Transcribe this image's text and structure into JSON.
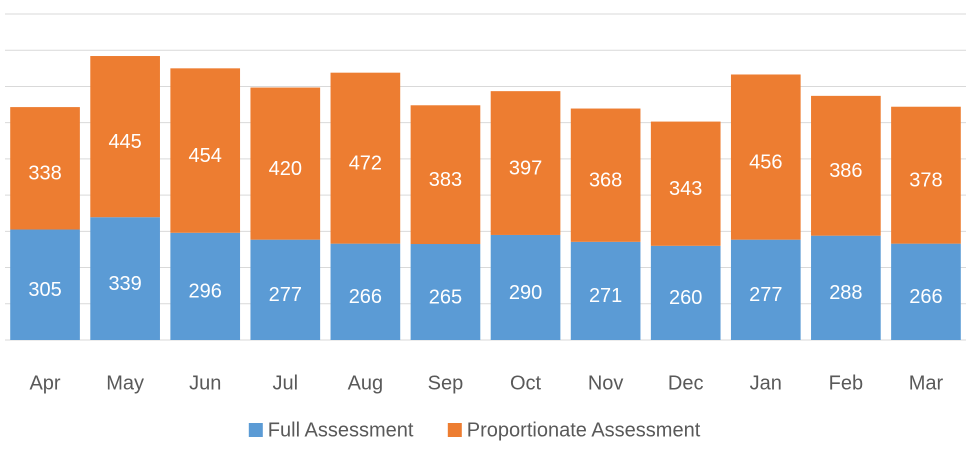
{
  "chart_data": {
    "type": "stacked_bar",
    "categories": [
      "Apr",
      "May",
      "Jun",
      "Jul",
      "Aug",
      "Sep",
      "Oct",
      "Nov",
      "Dec",
      "Jan",
      "Feb",
      "Mar"
    ],
    "series": [
      {
        "name": "Full Assessment",
        "color": "#5b9bd5",
        "values": [
          305,
          339,
          296,
          277,
          266,
          265,
          290,
          271,
          260,
          277,
          288,
          266
        ]
      },
      {
        "name": "Proportionate Assessment",
        "color": "#ed7d31",
        "values": [
          338,
          445,
          454,
          420,
          472,
          383,
          397,
          368,
          343,
          456,
          386,
          378
        ]
      }
    ],
    "ylim": [
      0,
      900
    ],
    "yticks": [
      0,
      100,
      200,
      300,
      400,
      500,
      600,
      700,
      800,
      900
    ],
    "grid": true,
    "legend": "bottom"
  }
}
